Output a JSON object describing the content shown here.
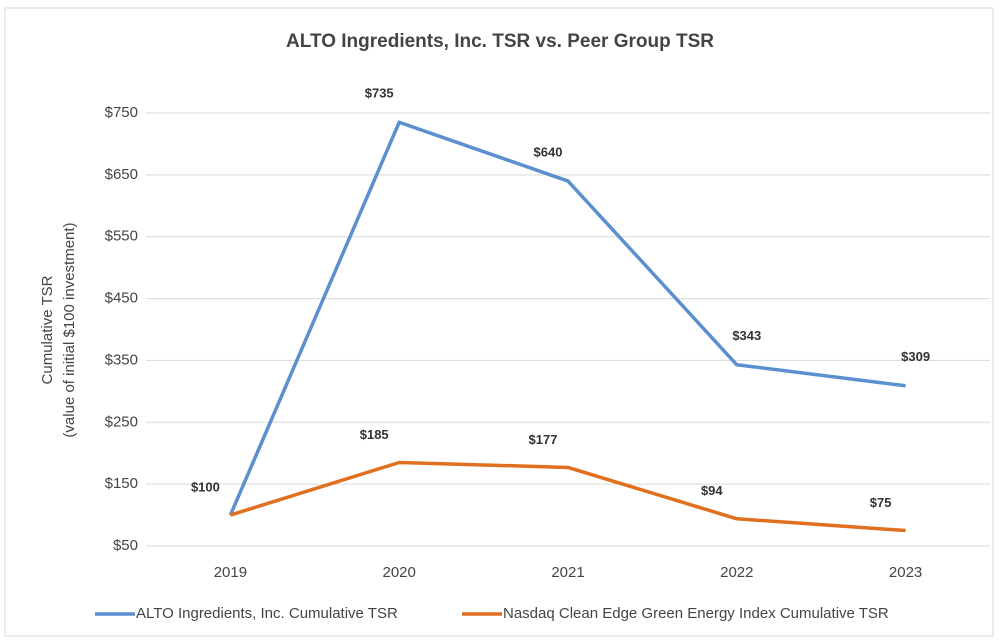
{
  "chart_data": {
    "type": "line",
    "title": "ALTO Ingredients, Inc. TSR vs. Peer Group TSR",
    "y_label": [
      "Cumulative TSR",
      "(value of initial $100 investment)"
    ],
    "categories": [
      "2019",
      "2020",
      "2021",
      "2022",
      "2023"
    ],
    "series": [
      {
        "name": "ALTO Ingredients, Inc. Cumulative TSR",
        "color": "#5b8fd0",
        "values": [
          100,
          735,
          640,
          343,
          309
        ],
        "value_labels": [
          null,
          "$735",
          "$640",
          "$343",
          "$309"
        ]
      },
      {
        "name": "Nasdaq Clean Edge Green Energy Index Cumulative TSR",
        "color": "#e07020",
        "values": [
          100,
          185,
          177,
          94,
          75
        ],
        "value_labels": [
          "$100",
          "$185",
          "$177",
          "$94",
          "$75"
        ]
      }
    ],
    "ylim": [
      50,
      750
    ],
    "yticks": [
      {
        "value": 50,
        "label": "$50"
      },
      {
        "value": 150,
        "label": "$150"
      },
      {
        "value": 250,
        "label": "$250"
      },
      {
        "value": 350,
        "label": "$350"
      },
      {
        "value": 450,
        "label": "$450"
      },
      {
        "value": 550,
        "label": "$550"
      },
      {
        "value": 650,
        "label": "$650"
      },
      {
        "value": 750,
        "label": "$750"
      }
    ],
    "grid": true,
    "legend": "bottom"
  }
}
